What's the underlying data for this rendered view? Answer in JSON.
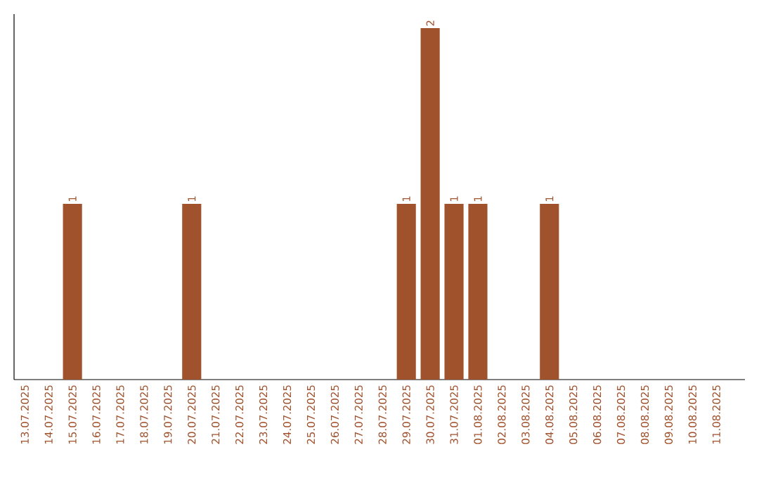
{
  "chart_data": {
    "type": "bar",
    "categories": [
      "13.07.2025",
      "14.07.2025",
      "15.07.2025",
      "16.07.2025",
      "17.07.2025",
      "18.07.2025",
      "19.07.2025",
      "20.07.2025",
      "21.07.2025",
      "22.07.2025",
      "23.07.2025",
      "24.07.2025",
      "25.07.2025",
      "26.07.2025",
      "27.07.2025",
      "28.07.2025",
      "29.07.2025",
      "30.07.2025",
      "31.07.2025",
      "01.08.2025",
      "02.08.2025",
      "03.08.2025",
      "04.08.2025",
      "05.08.2025",
      "06.08.2025",
      "07.08.2025",
      "08.08.2025",
      "09.08.2025",
      "10.08.2025",
      "11.08.2025"
    ],
    "values": [
      0,
      0,
      1,
      0,
      0,
      0,
      0,
      1,
      0,
      0,
      0,
      0,
      0,
      0,
      0,
      0,
      1,
      2,
      1,
      1,
      0,
      0,
      1,
      0,
      0,
      0,
      0,
      0,
      0,
      0
    ],
    "value_labels": [
      null,
      null,
      "1",
      null,
      null,
      null,
      null,
      "1",
      null,
      null,
      null,
      null,
      null,
      null,
      null,
      null,
      "1",
      "2",
      "1",
      "1",
      null,
      null,
      "1",
      null,
      null,
      null,
      null,
      null,
      null,
      null
    ],
    "color": "#a0522d",
    "tick_labels": "x"
  }
}
